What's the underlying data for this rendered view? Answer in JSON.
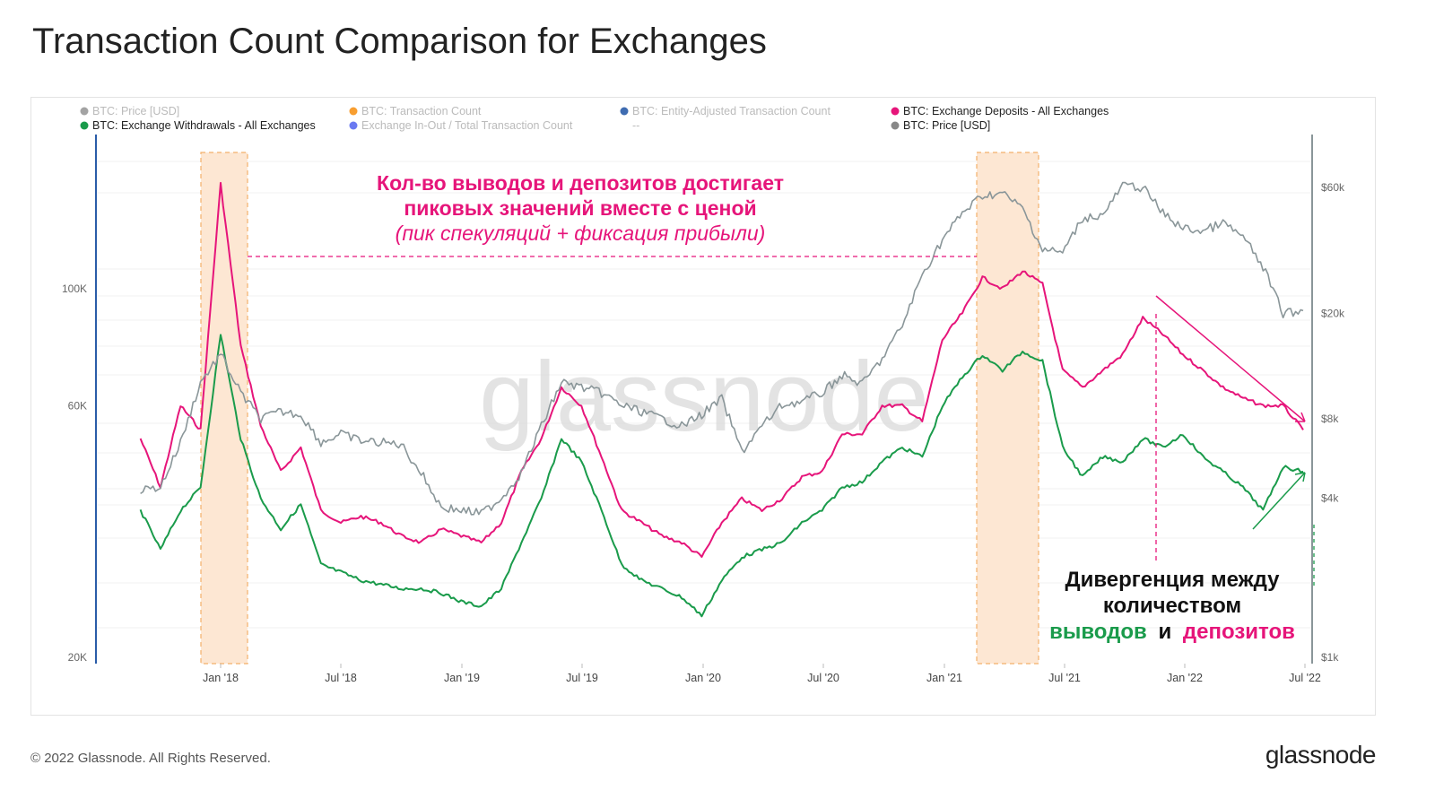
{
  "title": "Transaction Count Comparison for Exchanges",
  "footer": {
    "copyright": "© 2022 Glassnode. All Rights Reserved.",
    "brand": "glassnode"
  },
  "watermark": "glassnode",
  "legend": [
    {
      "label": "BTC: Price [USD]",
      "color": "#999999",
      "active": false
    },
    {
      "label": "BTC: Transaction Count",
      "color": "#f7931a",
      "active": false
    },
    {
      "label": "BTC: Entity-Adjusted Transaction Count",
      "color": "#2a5ca8",
      "active": false
    },
    {
      "label": "BTC: Exchange Deposits - All Exchanges",
      "color": "#e6157a",
      "active": true
    },
    {
      "label": "BTC: Exchange Withdrawals - All Exchanges",
      "color": "#1a9b4b",
      "active": true
    },
    {
      "label": "Exchange In-Out / Total Transaction Count",
      "color": "#5b6cf0",
      "active": false
    },
    {
      "label": "--",
      "color": "",
      "active": false
    },
    {
      "label": "BTC: Price [USD]",
      "color": "#888888",
      "active": true
    }
  ],
  "annotations": {
    "peak_line1": "Кол-во выводов и депозитов достигает",
    "peak_line2": "пиковых значений вместе с ценой",
    "peak_line3": "(пик спекуляций + фиксация прибыли)",
    "div_line1": "Дивергенция между",
    "div_line2": "количеством",
    "div_withdrawals": "выводов",
    "div_and": "и",
    "div_deposits": "депозитов"
  },
  "chart_data": {
    "type": "line",
    "x": [
      "2017-09",
      "2017-10",
      "2017-11",
      "2017-12",
      "2018-01",
      "2018-02",
      "2018-03",
      "2018-04",
      "2018-05",
      "2018-06",
      "2018-07",
      "2018-08",
      "2018-09",
      "2018-10",
      "2018-11",
      "2018-12",
      "2019-01",
      "2019-02",
      "2019-03",
      "2019-04",
      "2019-05",
      "2019-06",
      "2019-07",
      "2019-08",
      "2019-09",
      "2019-10",
      "2019-11",
      "2019-12",
      "2020-01",
      "2020-02",
      "2020-03",
      "2020-04",
      "2020-05",
      "2020-06",
      "2020-07",
      "2020-08",
      "2020-09",
      "2020-10",
      "2020-11",
      "2020-12",
      "2021-01",
      "2021-02",
      "2021-03",
      "2021-04",
      "2021-05",
      "2021-06",
      "2021-07",
      "2021-08",
      "2021-09",
      "2021-10",
      "2021-11",
      "2021-12",
      "2022-01",
      "2022-02",
      "2022-03",
      "2022-04",
      "2022-05",
      "2022-06",
      "2022-07"
    ],
    "x_ticks": [
      "Jan '18",
      "Jul '18",
      "Jan '19",
      "Jul '19",
      "Jan '20",
      "Jul '20",
      "Jan '21",
      "Jul '21",
      "Jan '22",
      "Jul '22"
    ],
    "y_left_ticks": [
      "20K",
      "60K",
      "100K"
    ],
    "y_right_ticks": [
      "$1k",
      "$4k",
      "$8k",
      "$20k",
      "$60k"
    ],
    "y_left_scale": "log",
    "y_right_scale": "log",
    "series": [
      {
        "name": "BTC: Exchange Deposits - All Exchanges",
        "axis": "left",
        "color": "#e6157a",
        "values": [
          52000,
          42000,
          60000,
          54000,
          158000,
          78000,
          55000,
          45000,
          50000,
          38000,
          36000,
          37000,
          36000,
          34000,
          33000,
          35000,
          34000,
          33000,
          36000,
          45000,
          52000,
          65000,
          60000,
          48000,
          38000,
          36000,
          34000,
          33000,
          31000,
          36000,
          40000,
          38000,
          40000,
          44000,
          45000,
          53000,
          53000,
          60000,
          60000,
          56000,
          80000,
          90000,
          105000,
          100000,
          108000,
          102000,
          70000,
          65000,
          70000,
          75000,
          88000,
          82000,
          75000,
          70000,
          65000,
          62000,
          60000,
          60000,
          54000
        ]
      },
      {
        "name": "BTC: Exchange Withdrawals - All Exchanges",
        "axis": "left",
        "color": "#1a9b4b",
        "values": [
          38000,
          32000,
          38000,
          42000,
          82000,
          52000,
          40000,
          35000,
          39000,
          30000,
          29000,
          28000,
          27500,
          27000,
          27000,
          26500,
          25500,
          25000,
          27000,
          33000,
          40000,
          52000,
          47000,
          38000,
          30000,
          28000,
          27000,
          26000,
          24000,
          28000,
          31000,
          32000,
          33000,
          36000,
          38000,
          42000,
          43000,
          47000,
          50000,
          48000,
          60000,
          68000,
          75000,
          70000,
          76000,
          73000,
          50000,
          44000,
          48000,
          47000,
          52000,
          50000,
          53000,
          48000,
          45000,
          42000,
          38000,
          46000,
          45000
        ]
      },
      {
        "name": "BTC: Price [USD]",
        "axis": "right",
        "color": "#8a9699",
        "values": [
          4300,
          4400,
          6500,
          11000,
          14000,
          10000,
          8000,
          8500,
          8300,
          6500,
          7000,
          6600,
          6500,
          6400,
          5000,
          3700,
          3600,
          3500,
          4000,
          5000,
          7500,
          11000,
          10500,
          10000,
          9000,
          8500,
          8000,
          7500,
          8300,
          9500,
          6000,
          7500,
          9000,
          9300,
          10000,
          11700,
          10800,
          13500,
          18000,
          28000,
          38000,
          48000,
          56000,
          57000,
          50000,
          35000,
          34000,
          46000,
          47000,
          61000,
          60000,
          48000,
          42000,
          41000,
          44000,
          39000,
          30000,
          20000,
          20500
        ]
      }
    ]
  }
}
